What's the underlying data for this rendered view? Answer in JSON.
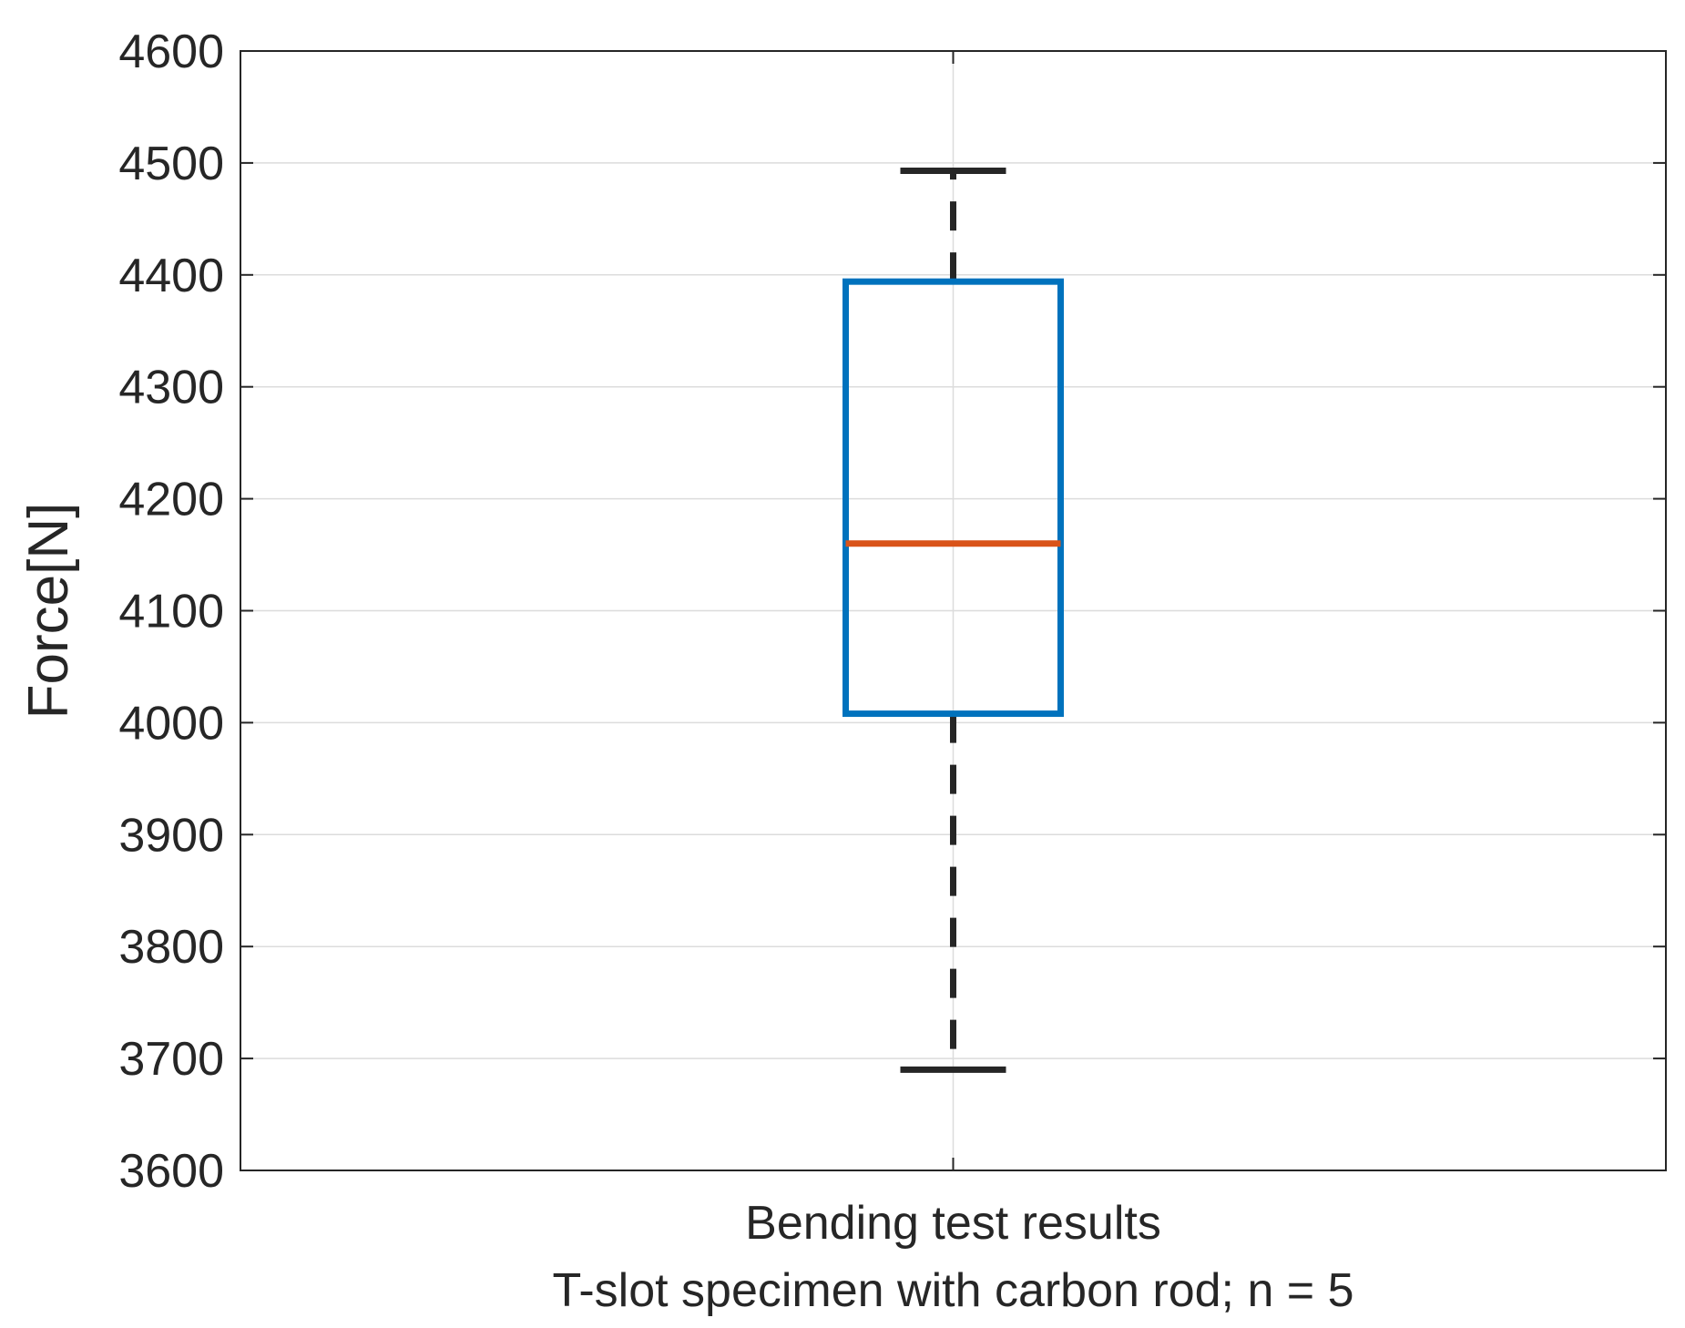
{
  "chart_data": {
    "type": "box",
    "ylabel": "Force[N]",
    "xlabel_lines": [
      "Bending test results",
      "T-slot specimen with carbon rod; n = 5"
    ],
    "ylim": [
      3600,
      4600
    ],
    "yticks": [
      3600,
      3700,
      3800,
      3900,
      4000,
      4100,
      4200,
      4300,
      4400,
      4500,
      4600
    ],
    "grid": true,
    "box": {
      "whisker_low": 3690,
      "q1": 4008,
      "median": 4160,
      "q3": 4394,
      "whisker_high": 4493
    },
    "colors": {
      "box": "#0072BD",
      "median": "#D95319",
      "whisker": "#262626",
      "grid": "#dcdcdc",
      "axis": "#262626"
    }
  }
}
